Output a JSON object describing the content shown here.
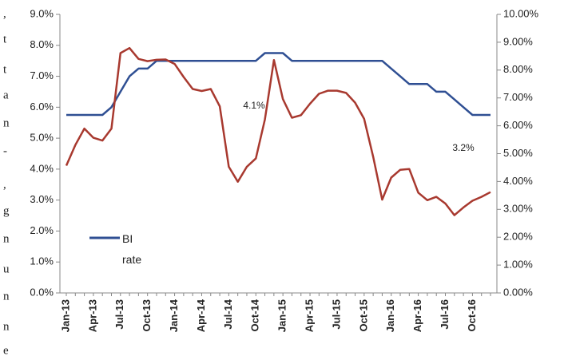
{
  "chart_data": {
    "type": "line",
    "categories": [
      "Jan-13",
      null,
      null,
      "Apr-13",
      null,
      null,
      "Jul-13",
      null,
      null,
      "Oct-13",
      null,
      null,
      "Jan-14",
      null,
      null,
      "Apr-14",
      null,
      null,
      "Jul-14",
      null,
      null,
      "Oct-14",
      null,
      null,
      "Jan-15",
      null,
      null,
      "Apr-15",
      null,
      null,
      "Jul-15",
      null,
      null,
      "Oct-15",
      null,
      null,
      "Jan-16",
      null,
      null,
      "Apr-16",
      null,
      null,
      "Jul-16",
      null,
      null,
      "Oct-16",
      null,
      null
    ],
    "series": [
      {
        "name": "BI rate",
        "color": "#2f4f93",
        "axis": "y",
        "values": [
          5.75,
          5.75,
          5.75,
          5.75,
          5.75,
          6.0,
          6.5,
          7.0,
          7.25,
          7.25,
          7.5,
          7.5,
          7.5,
          7.5,
          7.5,
          7.5,
          7.5,
          7.5,
          7.5,
          7.5,
          7.5,
          7.5,
          7.75,
          7.75,
          7.75,
          7.5,
          7.5,
          7.5,
          7.5,
          7.5,
          7.5,
          7.5,
          7.5,
          7.5,
          7.5,
          7.5,
          7.25,
          7.0,
          6.75,
          6.75,
          6.75,
          6.5,
          6.5,
          6.25,
          6.0,
          5.75,
          5.75,
          5.75
        ]
      },
      {
        "color": "#a8392f",
        "axis": "y2",
        "values": [
          4.57,
          5.31,
          5.9,
          5.57,
          5.47,
          5.9,
          8.61,
          8.79,
          8.4,
          8.32,
          8.37,
          8.38,
          8.22,
          7.75,
          7.32,
          7.25,
          7.32,
          6.7,
          4.53,
          3.99,
          4.53,
          4.83,
          6.23,
          8.36,
          6.96,
          6.29,
          6.38,
          6.79,
          7.15,
          7.26,
          7.26,
          7.18,
          6.83,
          6.25,
          4.89,
          3.35,
          4.14,
          4.42,
          4.45,
          3.6,
          3.33,
          3.45,
          3.21,
          2.79,
          3.07,
          3.31,
          3.45,
          3.62
        ]
      }
    ],
    "ylim": [
      0,
      9
    ],
    "yticks": [
      {
        "value": 0,
        "label": "0.0%"
      },
      {
        "value": 1,
        "label": "1.0%"
      },
      {
        "value": 2,
        "label": "2.0%"
      },
      {
        "value": 3,
        "label": "3.0%"
      },
      {
        "value": 4,
        "label": "4.0%"
      },
      {
        "value": 5,
        "label": "5.0%"
      },
      {
        "value": 6,
        "label": "6.0%"
      },
      {
        "value": 7,
        "label": "7.0%"
      },
      {
        "value": 8,
        "label": "8.0%"
      },
      {
        "value": 9,
        "label": "9.0%"
      }
    ],
    "y2lim": [
      0,
      10
    ],
    "y2ticks": [
      {
        "value": 0,
        "label": "0.00%"
      },
      {
        "value": 1,
        "label": "1.00%"
      },
      {
        "value": 2,
        "label": "2.00%"
      },
      {
        "value": 3,
        "label": "3.00%"
      },
      {
        "value": 4,
        "label": "4.00%"
      },
      {
        "value": 5,
        "label": "5.00%"
      },
      {
        "value": 6,
        "label": "6.00%"
      },
      {
        "value": 7,
        "label": "7.00%"
      },
      {
        "value": 8,
        "label": "8.00%"
      },
      {
        "value": 9,
        "label": "9.00%"
      },
      {
        "value": 10,
        "label": "10.00%"
      }
    ],
    "annotations": [
      "4.1%",
      "3.2%"
    ],
    "legend": "bottom-left",
    "grid": false
  },
  "margin_text": [
    ",",
    "t",
    "t",
    "a",
    "n",
    "-",
    ",",
    "g",
    "n",
    "u",
    "n",
    "n",
    "e"
  ]
}
